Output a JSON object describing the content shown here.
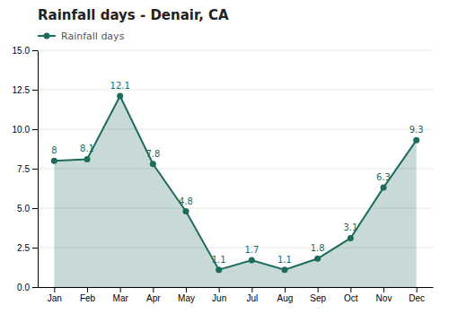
{
  "chart_data": {
    "type": "line",
    "title": "Rainfall days - Denair, CA",
    "categories": [
      "Jan",
      "Feb",
      "Mar",
      "Apr",
      "May",
      "Jun",
      "Jul",
      "Aug",
      "Sep",
      "Oct",
      "Nov",
      "Dec"
    ],
    "series": [
      {
        "name": "Rainfall days",
        "color": "#1e6b5e",
        "marker": "circle",
        "values": [
          8.0,
          8.1,
          12.1,
          7.8,
          4.8,
          1.1,
          1.7,
          1.1,
          1.8,
          3.1,
          6.3,
          9.3
        ]
      }
    ],
    "ylim": [
      0,
      15.0
    ],
    "yticks": [
      {
        "value": 0.0,
        "label": "0.0"
      },
      2.5,
      {
        "value": 5.0,
        "label": "5.0"
      },
      7.5,
      {
        "value": 10.0,
        "label": "10.0"
      },
      12.5,
      {
        "value": 15.0,
        "label": "15.0"
      }
    ],
    "grid": true,
    "legend": "upper left",
    "data_labels": true
  }
}
